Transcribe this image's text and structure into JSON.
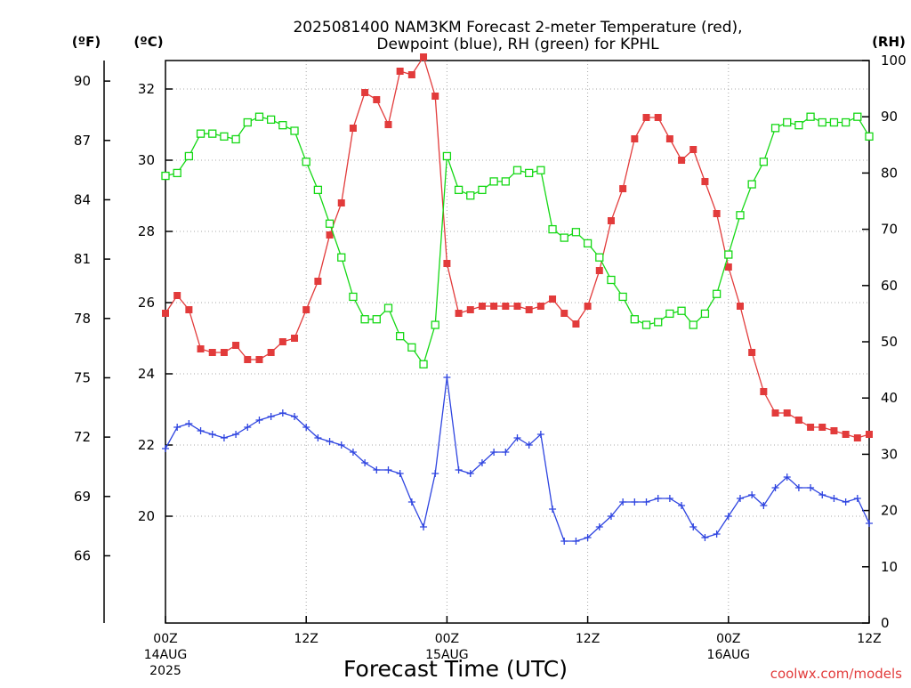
{
  "chart_data": {
    "type": "line",
    "title_line1": "2025081400 NAM3KM Forecast 2-meter Temperature (red),",
    "title_line2": "Dewpoint (blue), RH (green) for KPHL",
    "xlabel": "Forecast Time (UTC)",
    "left_outer_unit": "(ºF)",
    "left_inner_unit": "(ºC)",
    "right_unit": "(RH)",
    "credit": "coolwx.com/models",
    "colors": {
      "temperature": "#e23b3b",
      "dewpoint": "#2e44e0",
      "rh": "#15d815",
      "grid": "#a8a8a8",
      "axis": "#000000"
    },
    "x_range_hours": [
      0,
      60
    ],
    "x_grid_hours": [
      12,
      24,
      36,
      48
    ],
    "x_ticks": [
      {
        "hour": 0,
        "label": "00Z",
        "date": "14AUG",
        "year": "2025"
      },
      {
        "hour": 12,
        "label": "12Z"
      },
      {
        "hour": 24,
        "label": "00Z",
        "date": "15AUG"
      },
      {
        "hour": 36,
        "label": "12Z"
      },
      {
        "hour": 48,
        "label": "00Z",
        "date": "16AUG"
      },
      {
        "hour": 60,
        "label": "12Z"
      }
    ],
    "celsius_axis": {
      "range": [
        17.0,
        32.8
      ],
      "ticks": [
        20,
        22,
        24,
        26,
        28,
        30,
        32
      ]
    },
    "fahrenheit_axis": {
      "ticks": [
        66,
        69,
        72,
        75,
        78,
        81,
        84,
        87,
        90
      ]
    },
    "rh_axis": {
      "range": [
        0,
        100
      ],
      "ticks": [
        0,
        10,
        20,
        30,
        40,
        50,
        60,
        70,
        80,
        90,
        100
      ]
    },
    "series": [
      {
        "name": "2-meter Temperature",
        "key": "temperature",
        "units": "°C",
        "marker": "filled-square",
        "x": [
          0,
          1,
          2,
          3,
          4,
          5,
          6,
          7,
          8,
          9,
          10,
          11,
          12,
          13,
          14,
          15,
          16,
          17,
          18,
          19,
          20,
          21,
          22,
          23,
          24,
          25,
          26,
          27,
          28,
          29,
          30,
          31,
          32,
          33,
          34,
          35,
          36,
          37,
          38,
          39,
          40,
          41,
          42,
          43,
          44,
          45,
          46,
          47,
          48,
          49,
          50,
          51,
          52,
          53,
          54,
          55,
          56,
          57,
          58,
          59,
          60
        ],
        "values": [
          25.7,
          26.2,
          25.8,
          24.7,
          24.6,
          24.6,
          24.8,
          24.4,
          24.4,
          24.6,
          24.9,
          25.0,
          25.8,
          26.6,
          27.9,
          28.8,
          30.9,
          31.9,
          31.7,
          31.0,
          32.5,
          32.4,
          32.9,
          31.8,
          27.1,
          25.7,
          25.8,
          25.9,
          25.9,
          25.9,
          25.9,
          25.8,
          25.9,
          26.1,
          25.7,
          25.4,
          25.9,
          26.9,
          28.3,
          29.2,
          30.6,
          31.2,
          31.2,
          30.6,
          30.0,
          30.3,
          29.4,
          28.5,
          27.0,
          25.9,
          24.6,
          23.5,
          22.9,
          22.9,
          22.7,
          22.5,
          22.5,
          22.4,
          22.3,
          22.2,
          22.3
        ]
      },
      {
        "name": "Dewpoint",
        "key": "dewpoint",
        "units": "°C",
        "marker": "plus",
        "x": [
          0,
          1,
          2,
          3,
          4,
          5,
          6,
          7,
          8,
          9,
          10,
          11,
          12,
          13,
          14,
          15,
          16,
          17,
          18,
          19,
          20,
          21,
          22,
          23,
          24,
          25,
          26,
          27,
          28,
          29,
          30,
          31,
          32,
          33,
          34,
          35,
          36,
          37,
          38,
          39,
          40,
          41,
          42,
          43,
          44,
          45,
          46,
          47,
          48,
          49,
          50,
          51,
          52,
          53,
          54,
          55,
          56,
          57,
          58,
          59,
          60
        ],
        "values": [
          21.9,
          22.5,
          22.6,
          22.4,
          22.3,
          22.2,
          22.3,
          22.5,
          22.7,
          22.8,
          22.9,
          22.8,
          22.5,
          22.2,
          22.1,
          22.0,
          21.8,
          21.5,
          21.3,
          21.3,
          21.2,
          20.4,
          19.7,
          21.2,
          23.9,
          21.3,
          21.2,
          21.5,
          21.8,
          21.8,
          22.2,
          22.0,
          22.3,
          20.2,
          19.3,
          19.3,
          19.4,
          19.7,
          20.0,
          20.4,
          20.4,
          20.4,
          20.5,
          20.5,
          20.3,
          19.7,
          19.4,
          19.5,
          20.0,
          20.5,
          20.6,
          20.3,
          20.8,
          21.1,
          20.8,
          20.8,
          20.6,
          20.5,
          20.4,
          20.5,
          19.8
        ]
      },
      {
        "name": "RH",
        "key": "rh",
        "units": "%",
        "marker": "open-square",
        "x": [
          0,
          1,
          2,
          3,
          4,
          5,
          6,
          7,
          8,
          9,
          10,
          11,
          12,
          13,
          14,
          15,
          16,
          17,
          18,
          19,
          20,
          21,
          22,
          23,
          24,
          25,
          26,
          27,
          28,
          29,
          30,
          31,
          32,
          33,
          34,
          35,
          36,
          37,
          38,
          39,
          40,
          41,
          42,
          43,
          44,
          45,
          46,
          47,
          48,
          49,
          50,
          51,
          52,
          53,
          54,
          55,
          56,
          57,
          58,
          59,
          60
        ],
        "values": [
          79.5,
          80.0,
          83.0,
          87.0,
          87.0,
          86.5,
          86.0,
          89.0,
          90.0,
          89.5,
          88.5,
          87.5,
          82.0,
          77.0,
          71.0,
          65.0,
          58.0,
          54.0,
          54.0,
          56.0,
          51.0,
          49.0,
          46.0,
          53.0,
          83.0,
          77.0,
          76.0,
          77.0,
          78.5,
          78.5,
          80.5,
          80.0,
          80.5,
          70.0,
          68.5,
          69.5,
          67.5,
          65.0,
          61.0,
          58.0,
          54.0,
          53.0,
          53.5,
          55.0,
          55.5,
          53.0,
          55.0,
          58.5,
          65.5,
          72.5,
          78.0,
          82.0,
          88.0,
          89.0,
          88.5,
          90.0,
          89.0,
          89.0,
          89.0,
          90.0,
          86.5
        ]
      }
    ]
  }
}
